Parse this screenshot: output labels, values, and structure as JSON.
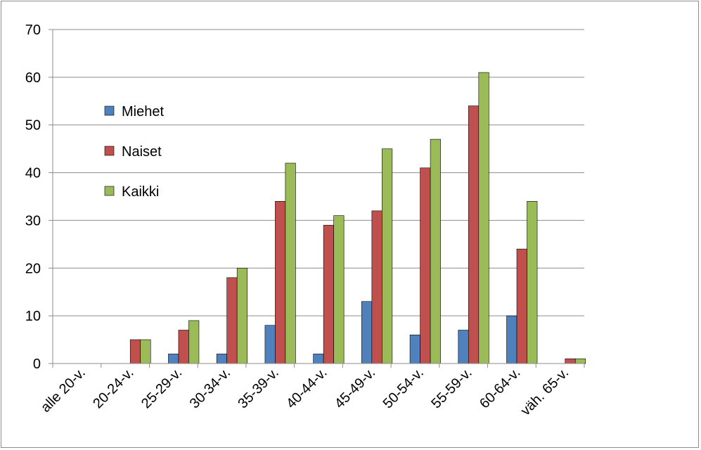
{
  "chart_data": {
    "type": "bar",
    "categories": [
      "alle 20-v.",
      "20-24-v.",
      "25-29-v.",
      "30-34-v.",
      "35-39-v.",
      "40-44-v.",
      "45-49-v.",
      "50-54-v.",
      "55-59-v.",
      "60-64-v.",
      "väh. 65-v."
    ],
    "series": [
      {
        "name": "Miehet",
        "color": "#4f81bd",
        "values": [
          0,
          0,
          2,
          2,
          8,
          2,
          13,
          6,
          7,
          10,
          0
        ]
      },
      {
        "name": "Naiset",
        "color": "#c0504d",
        "values": [
          0,
          5,
          7,
          18,
          34,
          29,
          32,
          41,
          54,
          24,
          1
        ]
      },
      {
        "name": "Kaikki",
        "color": "#9bbb59",
        "values": [
          0,
          5,
          9,
          20,
          42,
          31,
          45,
          47,
          61,
          34,
          1
        ]
      }
    ],
    "ylim": [
      0,
      70
    ],
    "yticks": [
      "0",
      "10",
      "20",
      "30",
      "40",
      "50",
      "60",
      "70"
    ],
    "grid": true,
    "legend_position": "upper-left inside plot",
    "title": "",
    "xlabel": "",
    "ylabel": ""
  }
}
